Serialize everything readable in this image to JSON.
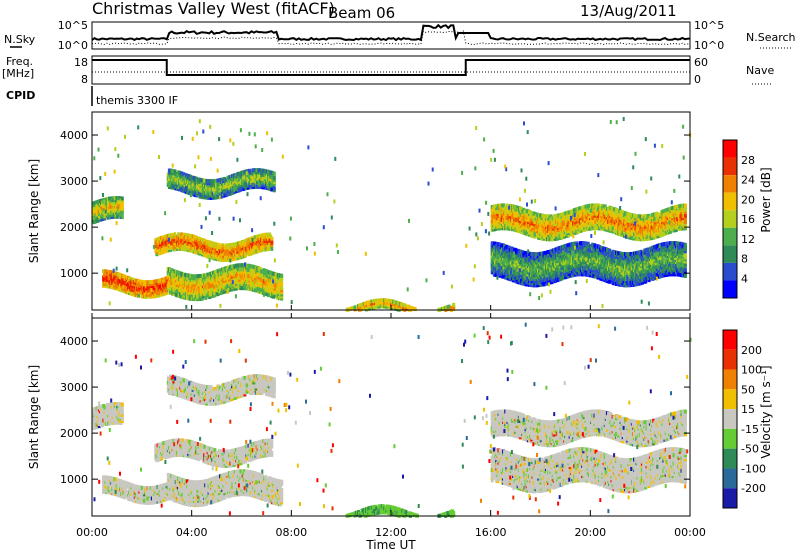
{
  "header": {
    "site": "Christmas Valley West (fitACF)",
    "beam": "Beam 06",
    "date": "13/Aug/2011"
  },
  "top_panels": {
    "nsky_label": "N.Sky",
    "nsky_ticks": [
      "10^5",
      "10^0"
    ],
    "nsearch_label": "N.Search",
    "nsearch_ticks": [
      "10^5",
      "10^0"
    ],
    "freq_label_1": "Freq.",
    "freq_label_2": "[MHz]",
    "freq_ticks": [
      "18",
      "8"
    ],
    "nave_label": "Nave",
    "nave_ticks": [
      "60",
      "0"
    ],
    "cpid_label": "CPID",
    "cpid_value": "themis 3300 IF"
  },
  "chart_data": [
    {
      "type": "heatmap",
      "name": "power",
      "ylabel": "Slant Range [km]",
      "yticks": [
        "1000",
        "2000",
        "3000",
        "4000"
      ],
      "ylim": [
        200,
        4500
      ],
      "xlim": [
        0,
        24
      ],
      "colorbar_label": "Power [dB]",
      "colorbar_ticks": [
        "4",
        "8",
        "12",
        "16",
        "20",
        "24",
        "28"
      ],
      "colorbar_range": [
        0,
        32
      ],
      "colors": [
        "#0000ff",
        "#2c4cd0",
        "#2e8b57",
        "#4cae4c",
        "#b5cf1c",
        "#f0c000",
        "#f08000",
        "#e83000",
        "#ff0000"
      ],
      "echo_bands": [
        {
          "t0": 0.0,
          "t1": 1.2,
          "r0": 2150,
          "r1": 2600,
          "level": 20
        },
        {
          "t0": 0.4,
          "t1": 3.0,
          "r0": 650,
          "r1": 1000,
          "level": 28
        },
        {
          "t0": 2.5,
          "t1": 7.2,
          "r0": 1450,
          "r1": 1800,
          "level": 26
        },
        {
          "t0": 3.0,
          "t1": 7.3,
          "r0": 2800,
          "r1": 3200,
          "level": 16
        },
        {
          "t0": 3.0,
          "t1": 7.6,
          "r0": 600,
          "r1": 1100,
          "level": 22
        },
        {
          "t0": 16.0,
          "t1": 23.8,
          "r0": 1900,
          "r1": 2400,
          "level": 24
        },
        {
          "t0": 16.0,
          "t1": 23.8,
          "r0": 900,
          "r1": 1600,
          "level": 14
        },
        {
          "t0": 9.5,
          "t1": 14.5,
          "r0": 200,
          "r1": 350,
          "level": 24
        }
      ]
    },
    {
      "type": "heatmap",
      "name": "velocity",
      "ylabel": "Slant Range [km]",
      "yticks": [
        "1000",
        "2000",
        "3000",
        "4000"
      ],
      "ylim": [
        200,
        4500
      ],
      "xlim": [
        0,
        24
      ],
      "xticks": [
        "00:00",
        "04:00",
        "08:00",
        "12:00",
        "16:00",
        "20:00",
        "00:00"
      ],
      "xlabel": "Time UT",
      "colorbar_label": "Velocity [m s⁻¹]",
      "colorbar_ticks": [
        "200",
        "100",
        "50",
        "15",
        "-15",
        "-50",
        "-100",
        "-200"
      ],
      "colors": [
        "#1a1aa8",
        "#2a6a9a",
        "#2e8b57",
        "#66cc33",
        "#c8c8c0",
        "#f0c000",
        "#f08000",
        "#e83000",
        "#ff0000"
      ]
    }
  ]
}
